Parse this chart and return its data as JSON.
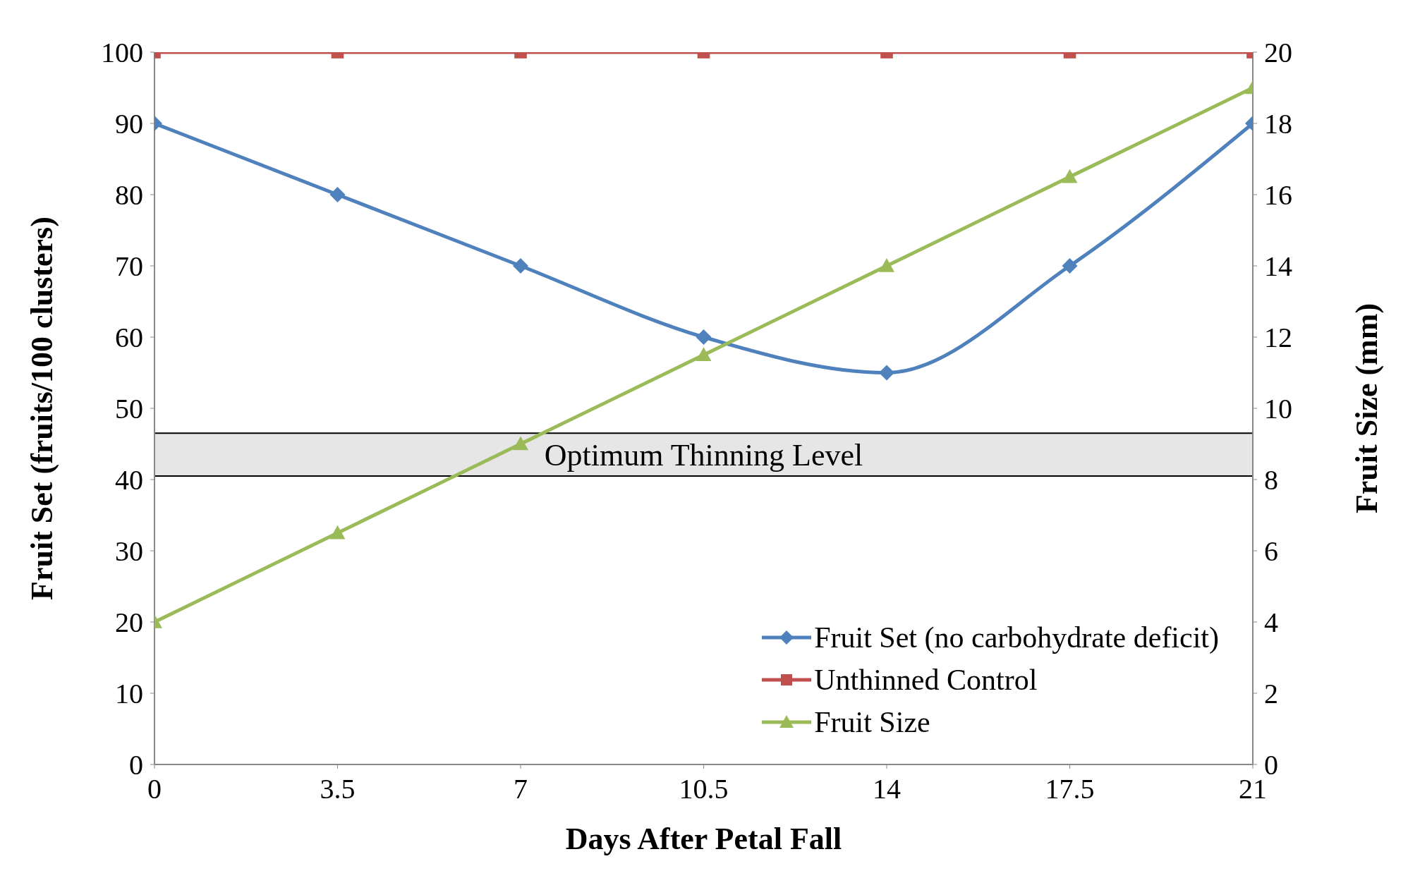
{
  "chart_data": {
    "type": "line",
    "xlabel": "Days After Petal Fall",
    "ylabel": "Fruit Set (fruits/100 clusters)",
    "y2label": "Fruit Size (mm)",
    "x": [
      0,
      3.5,
      7,
      10.5,
      14,
      17.5,
      21
    ],
    "series": [
      {
        "name": "Fruit Set (no carbohydrate deficit)",
        "color": "#4f81bd",
        "marker": "diamond",
        "values": [
          90,
          80,
          70,
          60,
          55,
          70,
          90
        ]
      },
      {
        "name": "Unthinned Control",
        "color": "#c0504d",
        "marker": "square",
        "values": [
          100,
          100,
          100,
          100,
          100,
          100,
          100
        ]
      },
      {
        "name": "Fruit Size",
        "color": "#9bbb59",
        "marker": "triangle",
        "axis": "y2",
        "values": [
          4,
          6.5,
          9,
          11.5,
          14,
          16.5,
          19
        ]
      }
    ],
    "xlim": [
      0,
      21
    ],
    "xticks": [
      0,
      3.5,
      7,
      10.5,
      14,
      17.5,
      21
    ],
    "ylim": [
      0,
      100
    ],
    "yticks": [
      0,
      10,
      20,
      30,
      40,
      50,
      60,
      70,
      80,
      90,
      100
    ],
    "y2lim": [
      0,
      20
    ],
    "y2ticks": [
      0,
      2,
      4,
      6,
      8,
      10,
      12,
      14,
      16,
      18,
      20
    ],
    "bands": [
      {
        "axis": "y",
        "from": 40.5,
        "to": 46.5,
        "label": "Optimum Thinning Level",
        "color": "#e6e6e6"
      }
    ],
    "legend": "bottom right",
    "grid": false,
    "line_style": "solid"
  }
}
